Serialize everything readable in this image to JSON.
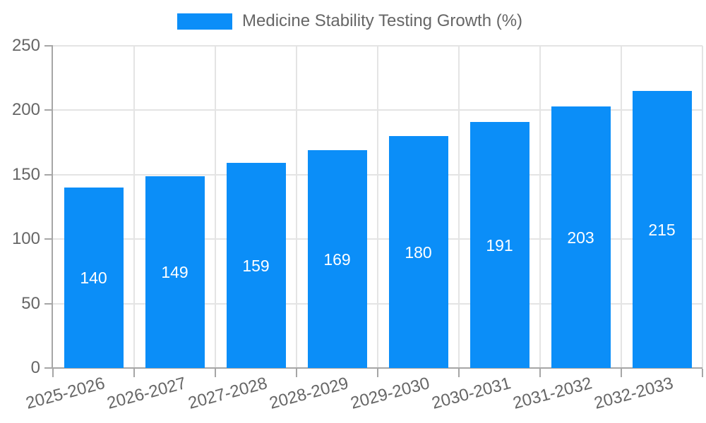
{
  "legend": {
    "label": "Medicine Stability Testing Growth (%)"
  },
  "chart_data": {
    "type": "bar",
    "title": "",
    "xlabel": "",
    "ylabel": "",
    "series_name": "Medicine Stability Testing Growth (%)",
    "categories": [
      "2025-2026",
      "2026-2027",
      "2027-2028",
      "2028-2029",
      "2029-2030",
      "2030-2031",
      "2031-2032",
      "2032-2033"
    ],
    "values": [
      140,
      149,
      159,
      169,
      180,
      191,
      203,
      215
    ],
    "ylim": [
      0,
      250
    ],
    "yticks": [
      0,
      50,
      100,
      150,
      200,
      250
    ],
    "grid": "on",
    "legend_position": "top",
    "bar_label_position": "center",
    "x_tick_rotation_deg": 15
  },
  "colors": {
    "bar": "#0b8ef8",
    "bar_label": "#ffffff",
    "grid": "#e4e4e4",
    "axis": "#a6a6a6",
    "tick_text": "#666666",
    "legend_text": "#666666",
    "background": "#ffffff"
  }
}
